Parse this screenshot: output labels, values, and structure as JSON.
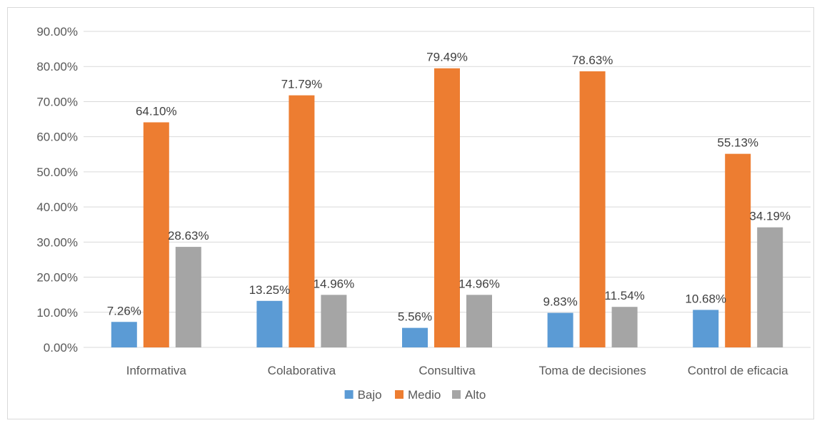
{
  "chart_data": {
    "type": "bar",
    "title": "",
    "xlabel": "",
    "ylabel": "",
    "categories": [
      "Informativa",
      "Colaborativa",
      "Consultiva",
      "Toma de decisiones",
      "Control de eficacia"
    ],
    "series": [
      {
        "name": "Bajo",
        "color": "#5b9bd5",
        "values": [
          7.26,
          13.25,
          5.56,
          9.83,
          10.68
        ],
        "labels": [
          "7.26%",
          "13.25%",
          "5.56%",
          "9.83%",
          "10.68%"
        ]
      },
      {
        "name": "Medio",
        "color": "#ed7d31",
        "values": [
          64.1,
          71.79,
          79.49,
          78.63,
          55.13
        ],
        "labels": [
          "64.10%",
          "71.79%",
          "79.49%",
          "78.63%",
          "55.13%"
        ]
      },
      {
        "name": "Alto",
        "color": "#a5a5a5",
        "values": [
          28.63,
          14.96,
          14.96,
          11.54,
          34.19
        ],
        "labels": [
          "28.63%",
          "14.96%",
          "14.96%",
          "11.54%",
          "34.19%"
        ]
      }
    ],
    "y_ticks": [
      "0.00%",
      "10.00%",
      "20.00%",
      "30.00%",
      "40.00%",
      "50.00%",
      "60.00%",
      "70.00%",
      "80.00%",
      "90.00%"
    ],
    "ylim": [
      0,
      90
    ],
    "grid": true,
    "gridline_color": "#d9d9d9",
    "legend_position": "bottom"
  }
}
